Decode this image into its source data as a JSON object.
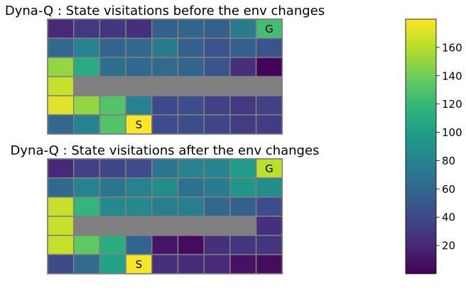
{
  "chart_data": [
    {
      "type": "heatmap",
      "title": "Dyna-Q : State visitations before the env changes",
      "rows": 6,
      "cols": 9,
      "values": [
        [
          20,
          30,
          28,
          24,
          55,
          58,
          55,
          75,
          125
        ],
        [
          60,
          80,
          58,
          60,
          75,
          55,
          48,
          55,
          48
        ],
        [
          150,
          110,
          65,
          60,
          62,
          58,
          48,
          25,
          2
        ],
        [
          165,
          null,
          null,
          null,
          null,
          null,
          null,
          null,
          null
        ],
        [
          172,
          150,
          130,
          80,
          40,
          42,
          35,
          30,
          35
        ],
        [
          60,
          80,
          130,
          180,
          42,
          42,
          38,
          32,
          32
        ]
      ],
      "wall_color": "#808080",
      "annotations": [
        {
          "text": "G",
          "row": 0,
          "col": 8
        },
        {
          "text": "S",
          "row": 5,
          "col": 3
        }
      ]
    },
    {
      "type": "heatmap",
      "title": "Dyna-Q : State visitations after the env changes",
      "rows": 6,
      "cols": 9,
      "values": [
        [
          20,
          35,
          38,
          42,
          70,
          80,
          82,
          100,
          162
        ],
        [
          60,
          80,
          70,
          80,
          88,
          68,
          75,
          95,
          88
        ],
        [
          165,
          118,
          85,
          85,
          78,
          78,
          60,
          55,
          42
        ],
        [
          165,
          null,
          null,
          null,
          null,
          null,
          null,
          null,
          25
        ],
        [
          165,
          135,
          112,
          58,
          10,
          5,
          25,
          28,
          28
        ],
        [
          40,
          62,
          102,
          178,
          25,
          22,
          22,
          8,
          5
        ]
      ],
      "wall_color": "#808080",
      "annotations": [
        {
          "text": "G",
          "row": 0,
          "col": 8
        },
        {
          "text": "S",
          "row": 5,
          "col": 3
        }
      ]
    }
  ],
  "colorbar": {
    "colormap": "viridis",
    "range": [
      0,
      180
    ],
    "ticks": [
      "20",
      "40",
      "60",
      "80",
      "100",
      "120",
      "140",
      "160"
    ],
    "tick_values": [
      20,
      40,
      60,
      80,
      100,
      120,
      140,
      160
    ]
  }
}
